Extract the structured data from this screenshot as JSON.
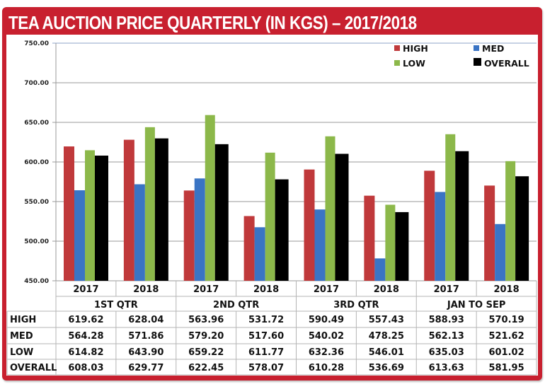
{
  "title": "TEA AUCTION PRICE QUARTERLY (IN KGS) – 2017/2018",
  "colors": {
    "frame": "#c8202f",
    "HIGH": "#c0393b",
    "MED": "#3a74c4",
    "LOW": "#8cb84a",
    "OVERALL": "#000000"
  },
  "chart_data": {
    "type": "bar",
    "title": "TEA AUCTION PRICE QUARTERLY (IN KGS) – 2017/2018",
    "xlabel": "",
    "ylabel": "",
    "ylim": [
      450,
      750
    ],
    "yticks": [
      450,
      500,
      550,
      600,
      650,
      700,
      750
    ],
    "ytick_labels": [
      "450.00",
      "500.00",
      "550.00",
      "600.00",
      "650.00",
      "700.00",
      "750.00"
    ],
    "grid": true,
    "legend": {
      "placement": "top-right",
      "entries": [
        "HIGH",
        "MED",
        "LOW",
        "OVERALL"
      ]
    },
    "groups": [
      "1ST QTR",
      "2ND QTR",
      "3RD QTR",
      "JAN TO SEP"
    ],
    "categories": [
      "2017",
      "2018",
      "2017",
      "2018",
      "2017",
      "2018",
      "2017",
      "2018"
    ],
    "series": [
      {
        "name": "HIGH",
        "values": [
          619.62,
          628.04,
          563.96,
          531.72,
          590.49,
          557.43,
          588.93,
          570.19
        ]
      },
      {
        "name": "MED",
        "values": [
          564.28,
          571.86,
          579.2,
          517.6,
          540.02,
          478.25,
          562.13,
          521.62
        ]
      },
      {
        "name": "LOW",
        "values": [
          614.82,
          643.9,
          659.22,
          611.77,
          632.36,
          546.01,
          635.03,
          601.02
        ]
      },
      {
        "name": "OVERALL",
        "values": [
          608.03,
          629.77,
          622.45,
          578.07,
          610.28,
          536.69,
          613.63,
          581.95
        ]
      }
    ],
    "table": {
      "row_labels": [
        "HIGH",
        "MED",
        "LOW",
        "OVERALL"
      ],
      "rows": [
        [
          "619.62",
          "628.04",
          "563.96",
          "531.72",
          "590.49",
          "557.43",
          "588.93",
          "570.19"
        ],
        [
          "564.28",
          "571.86",
          "579.20",
          "517.60",
          "540.02",
          "478.25",
          "562.13",
          "521.62"
        ],
        [
          "614.82",
          "643.90",
          "659.22",
          "611.77",
          "632.36",
          "546.01",
          "635.03",
          "601.02"
        ],
        [
          "608.03",
          "629.77",
          "622.45",
          "578.07",
          "610.28",
          "536.69",
          "613.63",
          "581.95"
        ]
      ]
    }
  }
}
